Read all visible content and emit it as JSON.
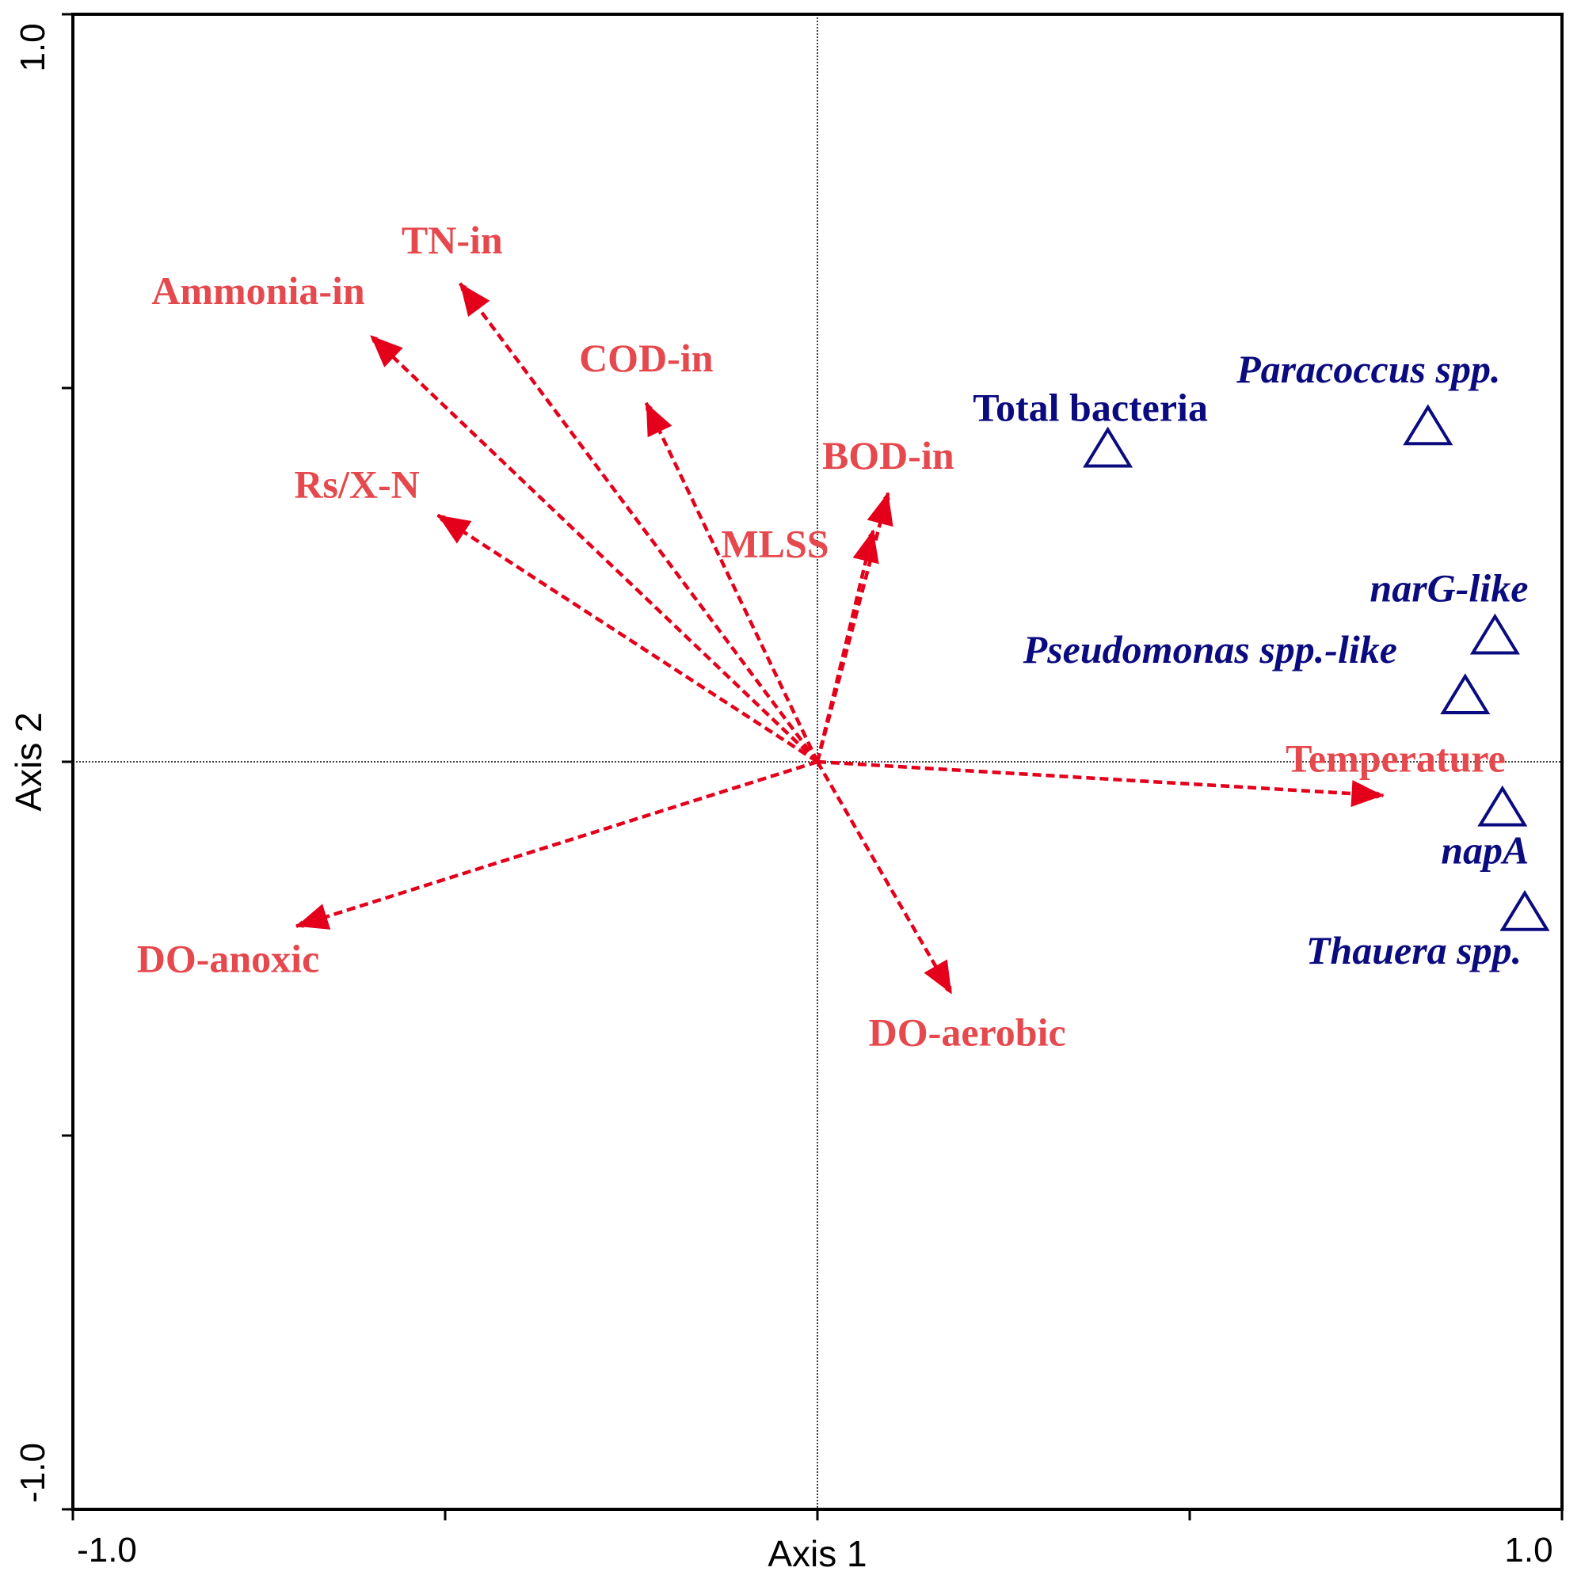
{
  "chart_data": {
    "type": "scatter",
    "title": "",
    "xlabel": "Axis 1",
    "ylabel": "Axis 2",
    "xlim": [
      -1.0,
      1.0
    ],
    "ylim": [
      -1.0,
      1.0
    ],
    "x_tick_labels": [
      "-1.0",
      "1.0"
    ],
    "y_tick_labels": [
      "1.0",
      "-1.0"
    ],
    "grid": false,
    "zero_lines": true,
    "colors": {
      "vectors": "#e4001b",
      "vector_labels": "#e5484d",
      "species": "#0b0b80"
    },
    "vectors": [
      {
        "name": "TN-in",
        "x": -0.48,
        "y": 0.64
      },
      {
        "name": "Ammonia-in",
        "x": -0.6,
        "y": 0.57
      },
      {
        "name": "COD-in",
        "x": -0.23,
        "y": 0.48
      },
      {
        "name": "Rs/X-N",
        "x": -0.51,
        "y": 0.33
      },
      {
        "name": "BOD-in",
        "x": 0.095,
        "y": 0.36
      },
      {
        "name": "MLSS",
        "x": 0.075,
        "y": 0.31
      },
      {
        "name": "Temperature",
        "x": 0.76,
        "y": -0.045
      },
      {
        "name": "DO-anoxic",
        "x": -0.7,
        "y": -0.22
      },
      {
        "name": "DO-aerobic",
        "x": 0.18,
        "y": -0.31
      }
    ],
    "species": [
      {
        "name": "Total bacteria",
        "italic": false,
        "x": 0.39,
        "y": 0.42
      },
      {
        "name": "Paracoccus spp.",
        "italic": true,
        "x": 0.82,
        "y": 0.45
      },
      {
        "name": "narG-like",
        "italic": true,
        "x": 0.91,
        "y": 0.17
      },
      {
        "name": "Pseudomonas spp.-like",
        "italic": true,
        "x": 0.87,
        "y": 0.09
      },
      {
        "name": "napA",
        "italic": true,
        "x": 0.92,
        "y": -0.06
      },
      {
        "name": "Thauera spp.",
        "italic": true,
        "x": 0.95,
        "y": -0.2
      }
    ]
  }
}
